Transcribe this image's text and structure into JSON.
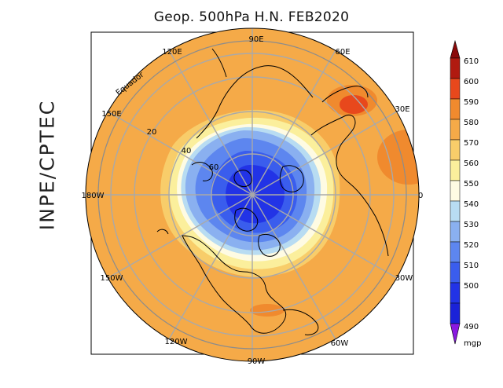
{
  "title": "Geop. 500hPa H.N. FEB2020",
  "side_label": "INPE/CPTEC",
  "map": {
    "projection": "north polar stereographic",
    "equator_label": "Equador",
    "longitude_labels": [
      "90E",
      "60E",
      "30E",
      "0",
      "30W",
      "60W",
      "90W",
      "120W",
      "150W",
      "180W",
      "150E",
      "120E"
    ],
    "latitude_labels": [
      "20",
      "40",
      "60"
    ]
  },
  "colorbar": {
    "unit": "mgp",
    "levels": [
      "610",
      "600",
      "590",
      "580",
      "570",
      "560",
      "550",
      "540",
      "530",
      "520",
      "510",
      "500",
      "490"
    ],
    "colors": {
      "605": "#b01a10",
      "595": "#e8481c",
      "585": "#f08a2e",
      "575": "#f5aa48",
      "565": "#f8cd6a",
      "555": "#fbef9c",
      "545": "#fefbe3",
      "535": "#b8dcf2",
      "525": "#8ab0f0",
      "515": "#5d86ef",
      "505": "#3a5ded",
      "495": "#2233e6",
      "top_triangle": "#8a0a0a",
      "bottom_triangle": "#8a1ae0"
    }
  }
}
